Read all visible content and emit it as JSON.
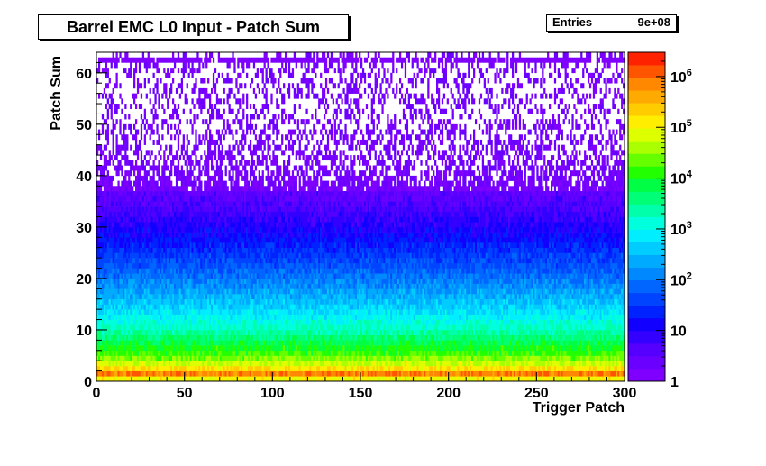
{
  "title": "Barrel EMC L0 Input - Patch Sum",
  "stats": {
    "label": "Entries",
    "value": "9e+08"
  },
  "chart_data": {
    "type": "heatmap",
    "xlabel": "Trigger Patch",
    "ylabel": "Patch Sum",
    "xlim": [
      0,
      300
    ],
    "ylim": [
      0,
      64
    ],
    "x_ticks": [
      "0",
      "50",
      "100",
      "150",
      "200",
      "250",
      "300"
    ],
    "y_ticks": [
      "0",
      "10",
      "20",
      "30",
      "40",
      "50",
      "60"
    ],
    "z_scale": "log",
    "zlim": [
      1,
      3000000
    ],
    "z_ticks": [
      {
        "value": 1,
        "label": "1"
      },
      {
        "value": 10,
        "label": "10"
      },
      {
        "value": 100,
        "label": "10^2"
      },
      {
        "value": 1000,
        "label": "10^3"
      },
      {
        "value": 10000,
        "label": "10^4"
      },
      {
        "value": 100000,
        "label": "10^5"
      },
      {
        "value": 1000000,
        "label": "10^6"
      }
    ],
    "colorbar_colors": [
      "#7f00ff",
      "#6a00ff",
      "#5500ff",
      "#3300ff",
      "#1100ff",
      "#0022ff",
      "#0044ff",
      "#0066ff",
      "#0088ff",
      "#00aaff",
      "#00ccff",
      "#00eeff",
      "#00ffdd",
      "#00ffaa",
      "#00ff77",
      "#00ff44",
      "#22ff00",
      "#66ff00",
      "#aaff00",
      "#ddff00",
      "#ffee00",
      "#ffcc00",
      "#ffaa00",
      "#ff8800",
      "#ff5500",
      "#ff2200"
    ],
    "profile": [
      {
        "y": 0,
        "counts": 5000
      },
      {
        "y": 1,
        "counts": 2000000
      },
      {
        "y": 2,
        "counts": 300000
      },
      {
        "y": 3,
        "counts": 80000
      },
      {
        "y": 5,
        "counts": 20000
      },
      {
        "y": 10,
        "counts": 2000
      },
      {
        "y": 15,
        "counts": 400
      },
      {
        "y": 20,
        "counts": 100
      },
      {
        "y": 25,
        "counts": 30
      },
      {
        "y": 30,
        "counts": 10
      },
      {
        "y": 35,
        "counts": 4
      },
      {
        "y": 40,
        "counts": 2
      },
      {
        "y": 50,
        "counts": 1
      },
      {
        "y": 62,
        "counts": 1
      }
    ],
    "overflow_row_y": 62
  }
}
